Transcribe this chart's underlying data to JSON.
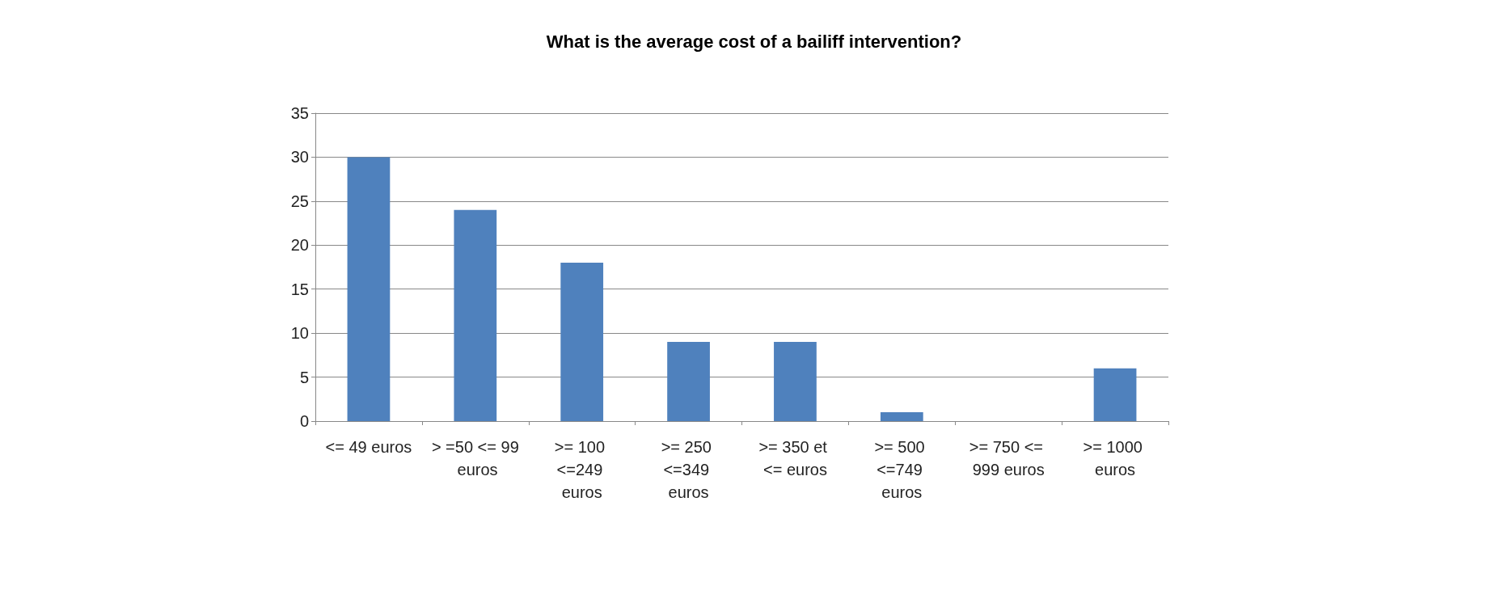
{
  "chart_data": {
    "type": "bar",
    "title": "What is the average cost of a bailiff intervention?",
    "categories": [
      "<= 49 euros",
      "> =50 <= 99 euros",
      ">= 100 <=249 euros",
      ">= 250 <=349 euros",
      ">= 350 et <= euros",
      ">= 500 <=749 euros",
      ">= 750 <= 999 euros",
      ">= 1000 euros"
    ],
    "values": [
      30,
      24,
      18,
      9,
      9,
      1,
      0,
      6
    ],
    "color": "#4f81bd",
    "ylim": [
      0,
      35
    ],
    "yticks": [
      0,
      5,
      10,
      15,
      20,
      25,
      30,
      35
    ],
    "grid": "y"
  }
}
